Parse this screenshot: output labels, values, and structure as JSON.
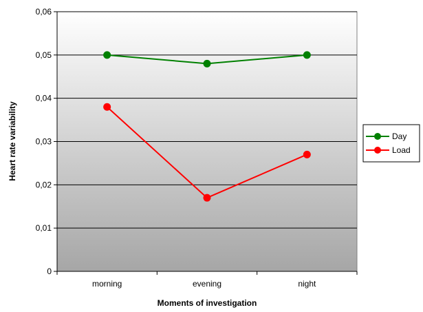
{
  "chart_data": {
    "type": "line",
    "categories": [
      "morning",
      "evening",
      "night"
    ],
    "series": [
      {
        "name": "Day",
        "values": [
          0.05,
          0.048,
          0.05
        ],
        "color": "#008000"
      },
      {
        "name": "Load",
        "values": [
          0.038,
          0.017,
          0.027
        ],
        "color": "#ff0000"
      }
    ],
    "xlabel": "Moments of investigation",
    "ylabel": "Heart rate variability",
    "ylim": [
      0,
      0.06
    ],
    "yticks": [
      0,
      0.01,
      0.02,
      0.03,
      0.04,
      0.05,
      0.06
    ],
    "ytick_labels": [
      "0",
      "0,01",
      "0,02",
      "0,03",
      "0,04",
      "0,05",
      "0,06"
    ],
    "grid": true,
    "legend_position": "right",
    "background": "gradient white-to-gray"
  }
}
